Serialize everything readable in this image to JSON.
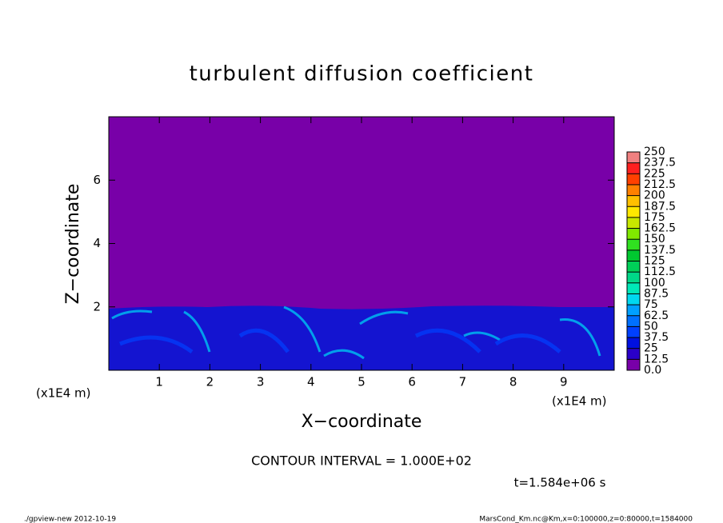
{
  "chart_data": {
    "type": "contour",
    "title": "turbulent diffusion coefficient",
    "x_label": "X−coordinate",
    "y_label": "Z−coordinate",
    "x_unit_left": "(x1E4 m)",
    "x_unit_right": "(x1E4 m)",
    "xlim": [
      0,
      10
    ],
    "xticks": [
      1,
      2,
      3,
      4,
      5,
      6,
      7,
      8,
      9
    ],
    "ylim": [
      0,
      8
    ],
    "yticks": [
      2,
      4,
      6
    ],
    "colorbar": {
      "clim": [
        0,
        250
      ],
      "ticks": [
        {
          "value": 0,
          "label": "0.0"
        },
        12.5,
        25,
        37.5,
        50,
        62.5,
        75,
        87.5,
        100,
        112.5,
        125,
        137.5,
        150,
        162.5,
        175,
        187.5,
        200,
        212.5,
        225,
        237.5,
        250
      ],
      "colors": [
        "#7800a8",
        "#2a00c8",
        "#0010e0",
        "#0040ff",
        "#0070ff",
        "#00a0ff",
        "#00d8f0",
        "#00e8b8",
        "#00d888",
        "#00d058",
        "#00c830",
        "#30e020",
        "#80e800",
        "#c8e800",
        "#ffe800",
        "#ffc000",
        "#ff8000",
        "#ff4000",
        "#ff2020",
        "#f08080"
      ]
    },
    "contour_interval": "CONTOUR INTERVAL = 1.000E+02",
    "time_label": "t=1.584e+06 s",
    "footer_left": "./gpview-new  2012-10-19",
    "footer_right": "MarsCond_Km.nc@Km,x=0:100000,z=0:80000,t=1584000"
  }
}
